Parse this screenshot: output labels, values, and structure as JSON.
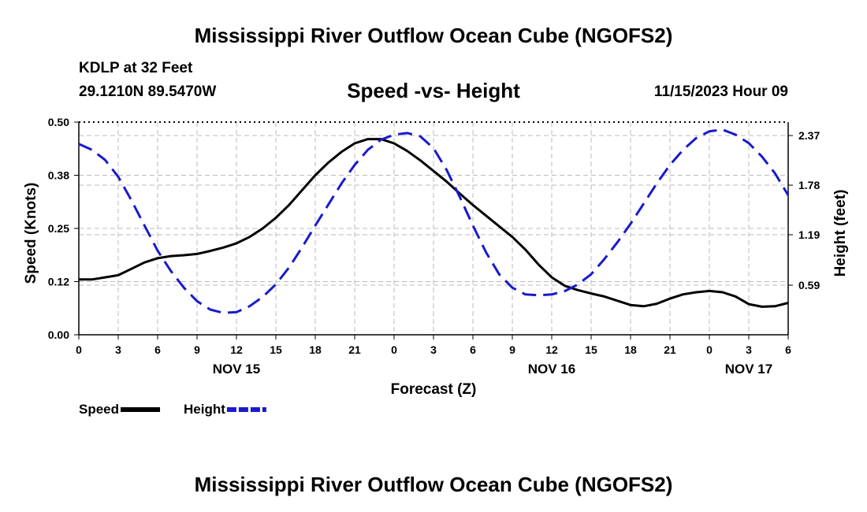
{
  "page": {
    "main_title": "Mississippi River Outflow Ocean Cube (NGOFS2)",
    "station": "KDLP at 32 Feet",
    "coordinates": "29.1210N  89.5470W",
    "chart_title": "Speed -vs- Height",
    "datetime": "11/15/2023 Hour 09",
    "bottom_title": "Mississippi River Outflow Ocean Cube (NGOFS2)"
  },
  "chart_data": {
    "type": "line",
    "title": "Speed -vs- Height",
    "xlabel": "Forecast (Z)",
    "x": [
      0,
      3,
      6,
      9,
      12,
      15,
      18,
      21,
      24,
      27,
      30,
      33,
      36,
      39,
      42,
      45,
      48,
      51,
      54
    ],
    "x_tick_labels": [
      "0",
      "3",
      "6",
      "9",
      "12",
      "15",
      "18",
      "21",
      "0",
      "3",
      "6",
      "9",
      "12",
      "15",
      "18",
      "21",
      "0",
      "3",
      "6"
    ],
    "xlim": [
      0,
      54
    ],
    "date_labels": [
      {
        "x": 12,
        "label": "NOV 15"
      },
      {
        "x": 36,
        "label": "NOV 16"
      },
      {
        "x": 51,
        "label": "NOV 17"
      }
    ],
    "grid": true,
    "series": [
      {
        "name": "Speed",
        "axis": "left",
        "color": "#000000",
        "style": "solid",
        "x": [
          0,
          1,
          2,
          3,
          4,
          5,
          6,
          7,
          8,
          9,
          10,
          11,
          12,
          13,
          14,
          15,
          16,
          17,
          18,
          19,
          20,
          21,
          22,
          23,
          24,
          25,
          26,
          27,
          28,
          29,
          30,
          31,
          32,
          33,
          34,
          35,
          36,
          37,
          38,
          39,
          40,
          41,
          42,
          43,
          44,
          45,
          46,
          47,
          48,
          49,
          50,
          51,
          52,
          53,
          54
        ],
        "values": [
          0.13,
          0.13,
          0.135,
          0.14,
          0.155,
          0.17,
          0.18,
          0.185,
          0.187,
          0.19,
          0.197,
          0.205,
          0.215,
          0.23,
          0.25,
          0.275,
          0.305,
          0.34,
          0.375,
          0.405,
          0.43,
          0.45,
          0.46,
          0.46,
          0.45,
          0.432,
          0.41,
          0.385,
          0.36,
          0.332,
          0.305,
          0.28,
          0.255,
          0.23,
          0.2,
          0.165,
          0.135,
          0.115,
          0.105,
          0.097,
          0.09,
          0.08,
          0.07,
          0.067,
          0.073,
          0.085,
          0.095,
          0.1,
          0.103,
          0.1,
          0.09,
          0.072,
          0.066,
          0.067,
          0.075
        ]
      },
      {
        "name": "Height",
        "axis": "right",
        "color": "#1a1acc",
        "style": "dashed",
        "x": [
          0,
          1,
          2,
          3,
          4,
          5,
          6,
          7,
          8,
          9,
          10,
          11,
          12,
          13,
          14,
          15,
          16,
          17,
          18,
          19,
          20,
          21,
          22,
          23,
          24,
          25,
          26,
          27,
          28,
          29,
          30,
          31,
          32,
          33,
          34,
          35,
          36,
          37,
          38,
          39,
          40,
          41,
          42,
          43,
          44,
          45,
          46,
          47,
          48,
          49,
          50,
          51,
          52,
          53,
          54
        ],
        "values": [
          2.27,
          2.2,
          2.08,
          1.88,
          1.6,
          1.3,
          1.0,
          0.76,
          0.56,
          0.4,
          0.3,
          0.26,
          0.27,
          0.34,
          0.45,
          0.6,
          0.8,
          1.04,
          1.3,
          1.55,
          1.8,
          2.02,
          2.2,
          2.32,
          2.38,
          2.4,
          2.36,
          2.22,
          1.96,
          1.64,
          1.3,
          0.98,
          0.72,
          0.56,
          0.48,
          0.47,
          0.48,
          0.52,
          0.6,
          0.72,
          0.9,
          1.1,
          1.32,
          1.56,
          1.8,
          2.02,
          2.2,
          2.34,
          2.42,
          2.44,
          2.38,
          2.28,
          2.12,
          1.92,
          1.66
        ]
      }
    ],
    "left_axis": {
      "label": "Speed (Knots)",
      "ylim": [
        0,
        0.5
      ],
      "ticks": [
        0,
        0.125,
        0.25,
        0.375,
        0.5
      ],
      "tick_labels": [
        "0.00",
        "0.12",
        "0.25",
        "0.38",
        "0.50"
      ]
    },
    "right_axis": {
      "label": "Height (feet)",
      "ylim": [
        0,
        2.53
      ],
      "ticks": [
        0.59,
        1.19,
        1.78,
        2.37
      ],
      "tick_labels": [
        "0.59",
        "1.19",
        "1.78",
        "2.37"
      ]
    },
    "legend": [
      {
        "label": "Speed",
        "color": "#000000",
        "style": "solid"
      },
      {
        "label": "Height",
        "color": "#1a1acc",
        "style": "dashed"
      }
    ]
  }
}
